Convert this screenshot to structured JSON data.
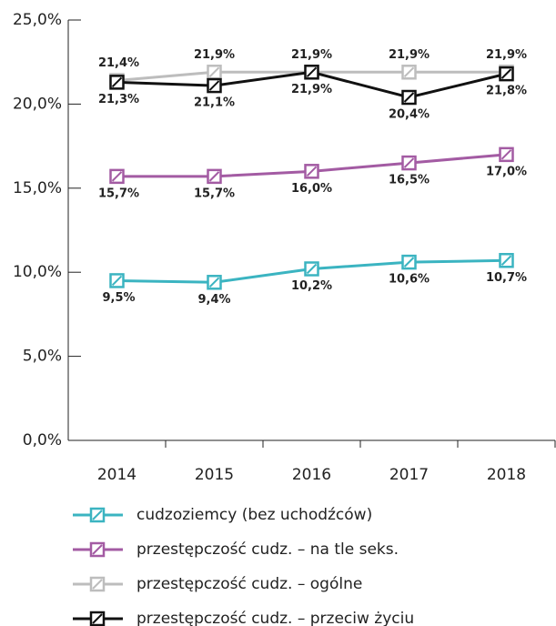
{
  "chart_data": {
    "type": "line",
    "categories": [
      "2014",
      "2015",
      "2016",
      "2017",
      "2018"
    ],
    "series": [
      {
        "name": "cudzoziemcy (bez uchodźców)",
        "color": "#3bb4c1",
        "values": [
          9.5,
          9.4,
          10.2,
          10.6,
          10.7
        ],
        "value_labels": [
          "9,5%",
          "9,4%",
          "10,2%",
          "10,6%",
          "10,7%"
        ]
      },
      {
        "name": "przestępczość cudz. – na tle seks.",
        "color": "#a35ba3",
        "values": [
          15.7,
          15.7,
          16.0,
          16.5,
          17.0
        ],
        "value_labels": [
          "15,7%",
          "15,7%",
          "16,0%",
          "16,5%",
          "17,0%"
        ]
      },
      {
        "name": "przestępczość cudz. – ogólne",
        "color": "#bdbdbd",
        "values": [
          21.4,
          21.9,
          21.9,
          21.9,
          21.9
        ],
        "value_labels": [
          "21,4%",
          "21,9%",
          "21,9%",
          "21,9%",
          "21,9%"
        ]
      },
      {
        "name": "przestępczość cudz. – przeciw życiu",
        "color": "#111111",
        "values": [
          21.3,
          21.1,
          21.9,
          20.4,
          21.8
        ],
        "value_labels": [
          "21,3%",
          "21,1%",
          "21,9%",
          "20,4%",
          "21,8%"
        ]
      }
    ],
    "ylim": [
      0,
      25
    ],
    "yticks": [
      {
        "value": 0,
        "label": "0,0%"
      },
      {
        "value": 5,
        "label": "5,0%"
      },
      {
        "value": 10,
        "label": "10,0%"
      },
      {
        "value": 15,
        "label": "15,0%"
      },
      {
        "value": 20,
        "label": "20,0%"
      },
      {
        "value": 25,
        "label": "25,0%"
      }
    ],
    "legend": "bottom"
  }
}
